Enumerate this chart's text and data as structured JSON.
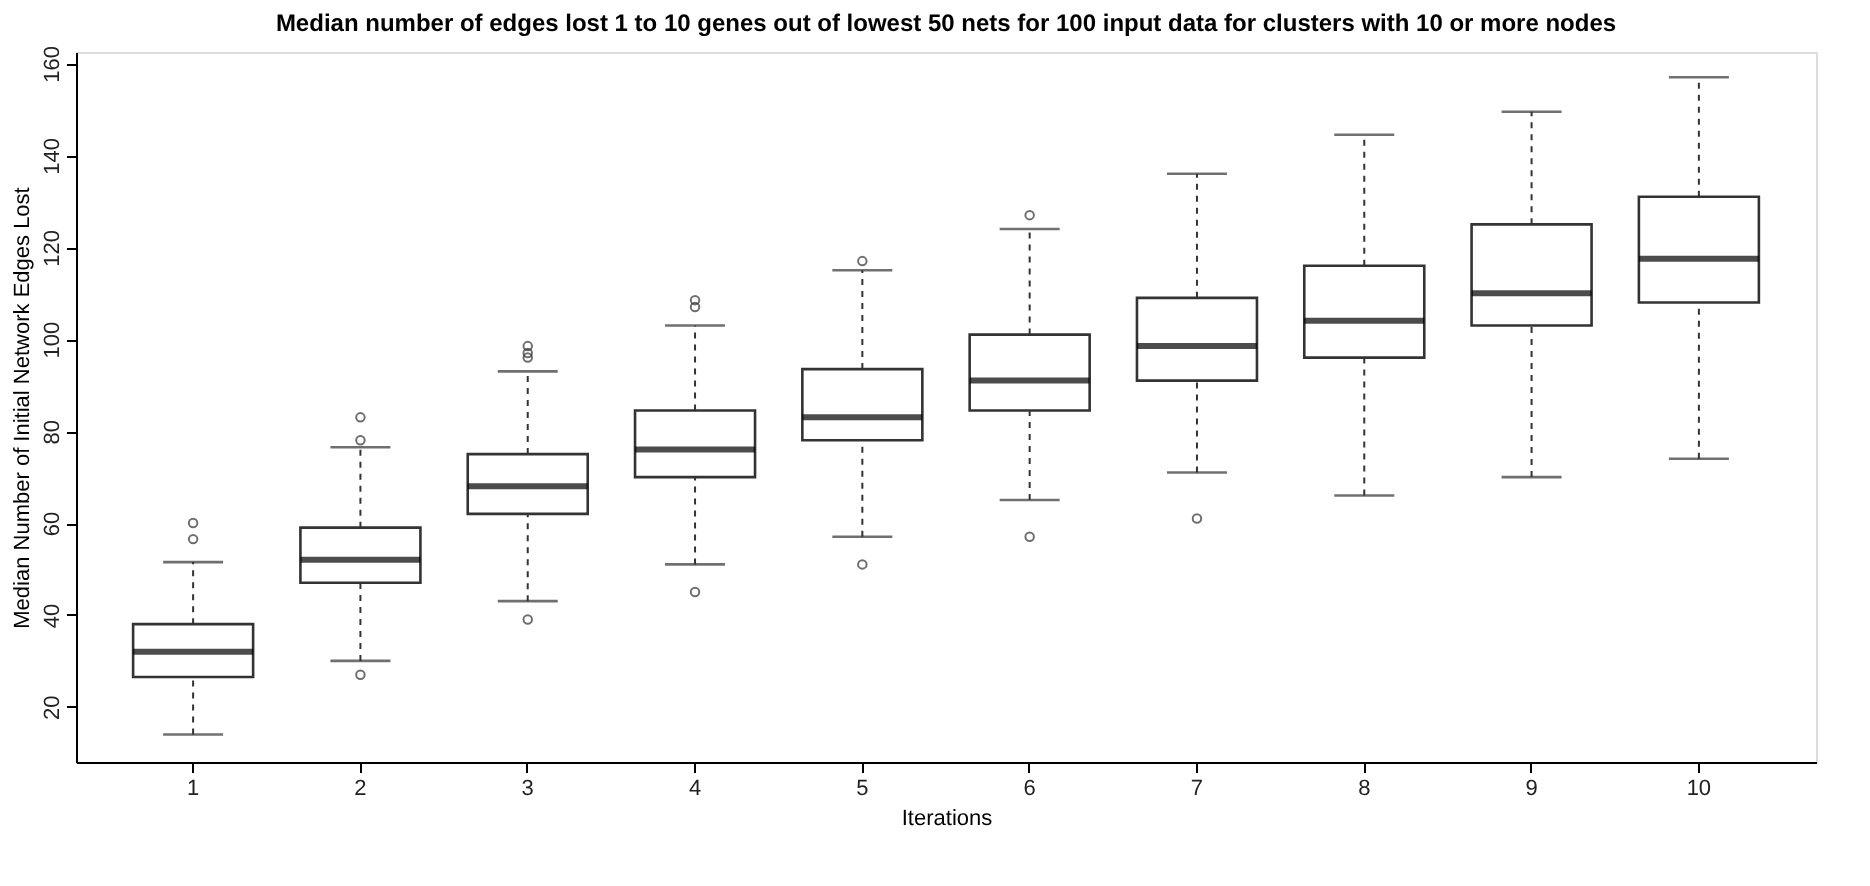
{
  "chart_data": {
    "type": "box",
    "title": "Median number of edges lost 1 to 10 genes out of lowest 50 nets for 100 input data for clusters with 10 or more nodes",
    "xlabel": "Iterations",
    "ylabel": "Median Number of Initial Network Edges Lost",
    "categories": [
      "1",
      "2",
      "3",
      "4",
      "5",
      "6",
      "7",
      "8",
      "9",
      "10"
    ],
    "boxes": [
      {
        "low": 14,
        "q1": 26.5,
        "median": 32,
        "q3": 38,
        "high": 51.5,
        "outliers": [
          56.5,
          60
        ]
      },
      {
        "low": 30,
        "q1": 47,
        "median": 52,
        "q3": 59,
        "high": 76.5,
        "outliers": [
          78,
          83,
          27
        ]
      },
      {
        "low": 43,
        "q1": 62,
        "median": 68,
        "q3": 75,
        "high": 93,
        "outliers": [
          96,
          97,
          98.5,
          39
        ]
      },
      {
        "low": 51,
        "q1": 70,
        "median": 76,
        "q3": 84.5,
        "high": 103,
        "outliers": [
          107,
          108.5,
          45
        ]
      },
      {
        "low": 57,
        "q1": 78,
        "median": 83,
        "q3": 93.5,
        "high": 115,
        "outliers": [
          117,
          51
        ]
      },
      {
        "low": 65,
        "q1": 84.5,
        "median": 91,
        "q3": 101,
        "high": 124,
        "outliers": [
          127,
          57
        ]
      },
      {
        "low": 71,
        "q1": 91,
        "median": 98.5,
        "q3": 109,
        "high": 136,
        "outliers": [
          61
        ]
      },
      {
        "low": 66,
        "q1": 96,
        "median": 104,
        "q3": 116,
        "high": 144.5
      },
      {
        "low": 70,
        "q1": 103,
        "median": 110,
        "q3": 125,
        "high": 149.5
      },
      {
        "low": 74,
        "q1": 108,
        "median": 117.5,
        "q3": 131,
        "high": 157
      }
    ],
    "ylim": [
      8,
      162.5
    ],
    "yticks": [
      20,
      40,
      60,
      80,
      100,
      120,
      140,
      160
    ]
  }
}
